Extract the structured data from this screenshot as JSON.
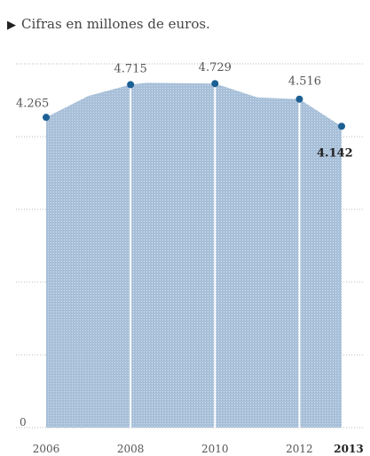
{
  "subtitle": "Cifras en millones de euros.",
  "colors": {
    "area": "#a7bfd8",
    "divider": "#ffffff",
    "marker": "#1c5f93",
    "grid": "#b8b8b8"
  },
  "chart_data": {
    "type": "area",
    "x": [
      2006,
      2008,
      2010,
      2012,
      2013
    ],
    "x_tick_labels": [
      "2006",
      "2008",
      "2010",
      "2012",
      "2013"
    ],
    "emphasized_x": 2013,
    "values": [
      4265,
      4715,
      4729,
      4516,
      4142
    ],
    "value_labels": [
      "4.265",
      "4.715",
      "4.729",
      "4.516",
      "4.142"
    ],
    "points": [
      {
        "x": 2006.0,
        "y": 4265
      },
      {
        "x": 2007.0,
        "y": 4560
      },
      {
        "x": 2008.0,
        "y": 4715
      },
      {
        "x": 2008.4,
        "y": 4740
      },
      {
        "x": 2010.0,
        "y": 4729
      },
      {
        "x": 2011.0,
        "y": 4540
      },
      {
        "x": 2012.0,
        "y": 4516
      },
      {
        "x": 2013.0,
        "y": 4142
      }
    ],
    "y_tick_labels": [
      "0"
    ],
    "xlim": [
      2006,
      2013
    ],
    "ylim": [
      0,
      5000
    ],
    "grid": true,
    "legend": "none"
  }
}
